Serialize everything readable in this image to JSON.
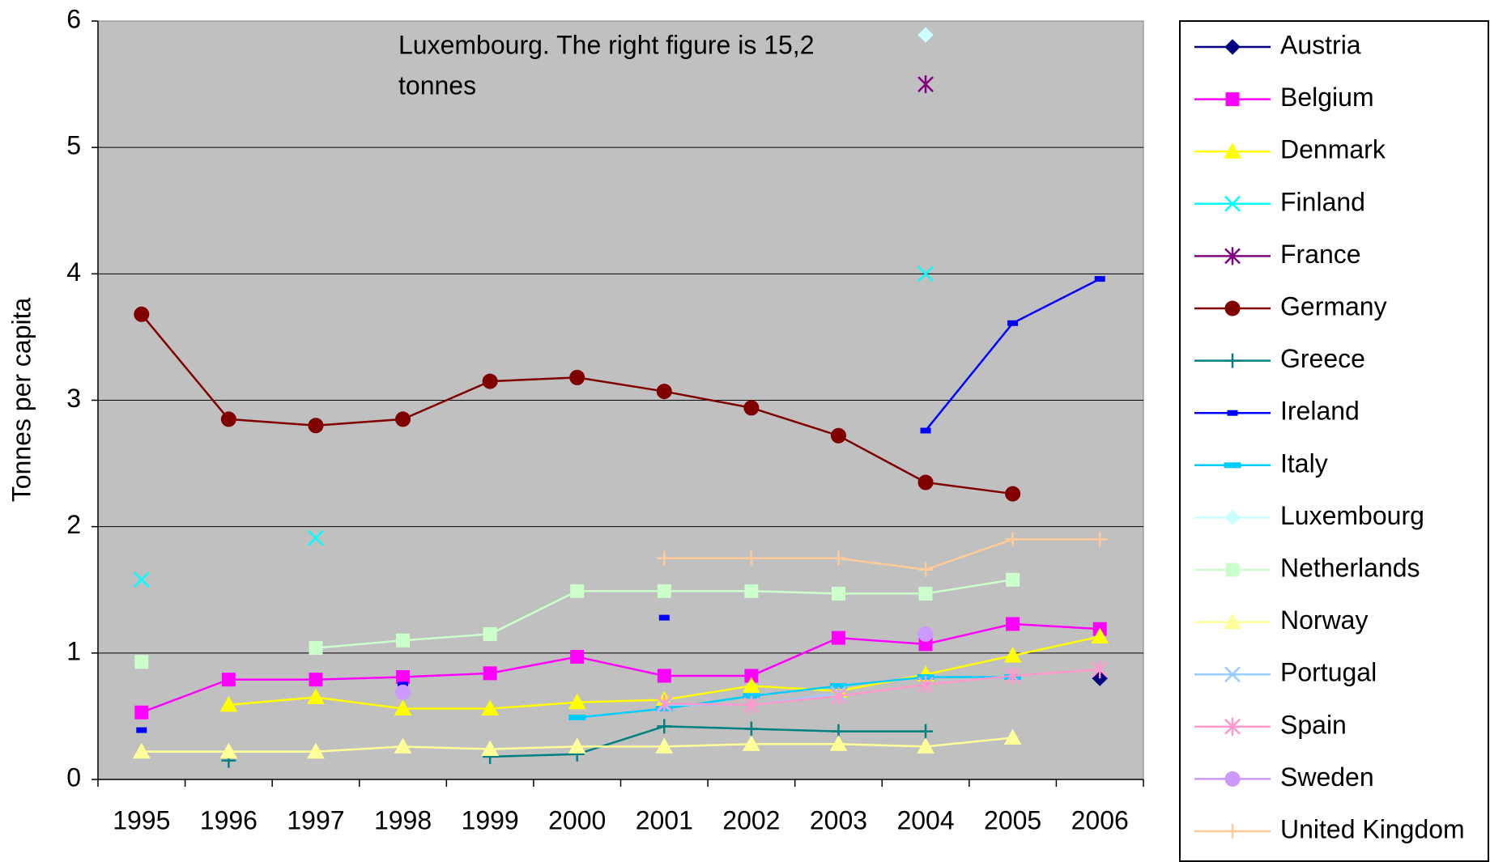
{
  "chart_data": {
    "type": "line",
    "ylabel": "Tonnes per capita",
    "annotation": [
      "Luxembourg. The right figure is 15,2",
      "tonnes"
    ],
    "categories": [
      "1995",
      "1996",
      "1997",
      "1998",
      "1999",
      "2000",
      "2001",
      "2002",
      "2003",
      "2004",
      "2005",
      "2006"
    ],
    "ylim": [
      0,
      6
    ],
    "yticks": [
      0,
      1,
      2,
      3,
      4,
      5,
      6
    ],
    "grid": true,
    "series": [
      {
        "name": "Austria",
        "color": "#000080",
        "marker": "diamond",
        "values": [
          null,
          null,
          null,
          null,
          null,
          null,
          null,
          null,
          null,
          null,
          null,
          0.8
        ]
      },
      {
        "name": "Belgium",
        "color": "#ff00ff",
        "marker": "square",
        "values": [
          0.53,
          0.79,
          0.79,
          0.81,
          0.84,
          0.97,
          0.82,
          0.82,
          1.12,
          1.07,
          1.23,
          1.19
        ]
      },
      {
        "name": "Denmark",
        "color": "#ffff00",
        "marker": "triangle",
        "values": [
          null,
          0.59,
          0.65,
          0.56,
          0.56,
          0.61,
          0.63,
          0.74,
          0.7,
          0.83,
          0.98,
          1.13
        ]
      },
      {
        "name": "Finland",
        "color": "#00ffff",
        "marker": "x",
        "values": [
          1.58,
          null,
          1.91,
          null,
          null,
          null,
          null,
          null,
          null,
          4.0,
          null,
          null
        ]
      },
      {
        "name": "France",
        "color": "#800080",
        "marker": "star",
        "values": [
          null,
          null,
          null,
          null,
          null,
          null,
          null,
          null,
          null,
          5.5,
          null,
          null
        ]
      },
      {
        "name": "Germany",
        "color": "#800000",
        "marker": "circle",
        "values": [
          3.68,
          2.85,
          2.8,
          2.85,
          3.15,
          3.18,
          3.07,
          2.94,
          2.72,
          2.35,
          2.26,
          null
        ]
      },
      {
        "name": "Greece",
        "color": "#008080",
        "marker": "plus",
        "values": [
          null,
          0.15,
          null,
          null,
          0.18,
          0.2,
          0.42,
          0.4,
          0.38,
          0.38,
          null,
          null
        ]
      },
      {
        "name": "Ireland",
        "color": "#0000ff",
        "marker": "dash",
        "values": [
          0.39,
          null,
          null,
          0.75,
          null,
          null,
          1.28,
          null,
          null,
          2.76,
          3.61,
          3.96
        ]
      },
      {
        "name": "Italy",
        "color": "#00ccff",
        "marker": "bar",
        "values": [
          null,
          null,
          null,
          null,
          null,
          0.49,
          0.56,
          0.66,
          0.74,
          0.81,
          0.81,
          null
        ]
      },
      {
        "name": "Luxembourg",
        "color": "#ccffff",
        "marker": "diamond",
        "values": [
          null,
          null,
          null,
          null,
          null,
          null,
          null,
          null,
          null,
          5.89,
          null,
          null
        ]
      },
      {
        "name": "Netherlands",
        "color": "#ccffcc",
        "marker": "square",
        "values": [
          0.93,
          null,
          1.04,
          1.1,
          1.15,
          1.49,
          1.49,
          1.49,
          1.47,
          1.47,
          1.58,
          null
        ]
      },
      {
        "name": "Norway",
        "color": "#ffff99",
        "marker": "triangle",
        "values": [
          0.22,
          0.22,
          0.22,
          0.26,
          0.24,
          0.26,
          0.26,
          0.28,
          0.28,
          0.26,
          0.33,
          null
        ]
      },
      {
        "name": "Portugal",
        "color": "#99ccff",
        "marker": "x",
        "values": [
          null,
          null,
          null,
          null,
          null,
          null,
          0.59,
          0.59,
          0.68,
          null,
          null,
          null
        ]
      },
      {
        "name": "Spain",
        "color": "#ff99cc",
        "marker": "star",
        "values": [
          null,
          null,
          null,
          null,
          null,
          null,
          0.6,
          0.59,
          0.66,
          0.75,
          0.82,
          0.87
        ]
      },
      {
        "name": "Sweden",
        "color": "#cc99ff",
        "marker": "circle",
        "values": [
          null,
          null,
          null,
          0.69,
          null,
          null,
          null,
          null,
          null,
          1.15,
          null,
          null
        ]
      },
      {
        "name": "United Kingdom",
        "color": "#ffcc99",
        "marker": "plus",
        "values": [
          null,
          null,
          null,
          null,
          null,
          null,
          1.75,
          1.75,
          1.75,
          1.66,
          1.9,
          1.9
        ]
      }
    ]
  }
}
